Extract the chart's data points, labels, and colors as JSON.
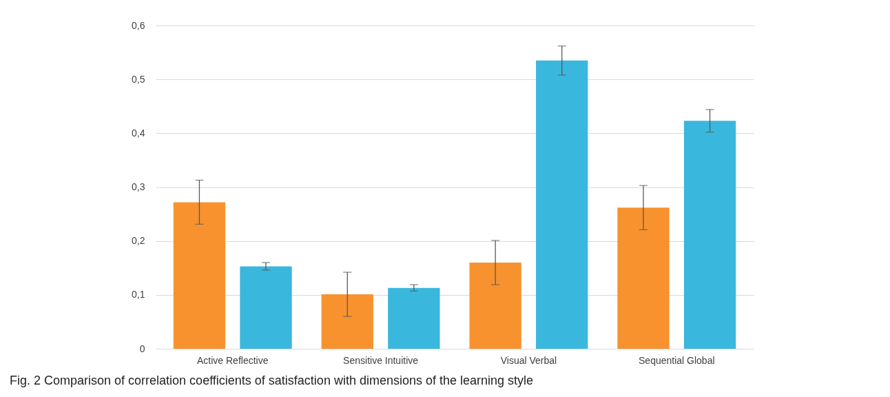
{
  "chart_data": {
    "type": "bar",
    "categories": [
      "Active  Reflective",
      "Sensitive Intuitive",
      "Visual Verbal",
      "Sequential Global"
    ],
    "series": [
      {
        "color": "#f7922f",
        "values": [
          0.272,
          0.101,
          0.16,
          0.262
        ],
        "errors": [
          0.041,
          0.041,
          0.041,
          0.041
        ]
      },
      {
        "color": "#3ab7dc",
        "values": [
          0.153,
          0.113,
          0.535,
          0.423
        ],
        "errors": [
          0.007,
          0.006,
          0.027,
          0.021
        ]
      }
    ],
    "ylim": [
      0,
      0.6
    ],
    "yticks": [
      0,
      {
        "value": 0.1,
        "label": "0,1"
      },
      {
        "value": 0.2,
        "label": "0,2"
      },
      {
        "value": 0.3,
        "label": "0,3"
      },
      {
        "value": 0.4,
        "label": "0,4"
      },
      {
        "value": 0.5,
        "label": "0,5"
      },
      {
        "value": 0.6,
        "label": "0,6"
      }
    ],
    "grid": "y",
    "annotations": [
      "Fig. 2 Comparison of correlation coefficients of satisfaction with dimensions of the learning style"
    ]
  }
}
